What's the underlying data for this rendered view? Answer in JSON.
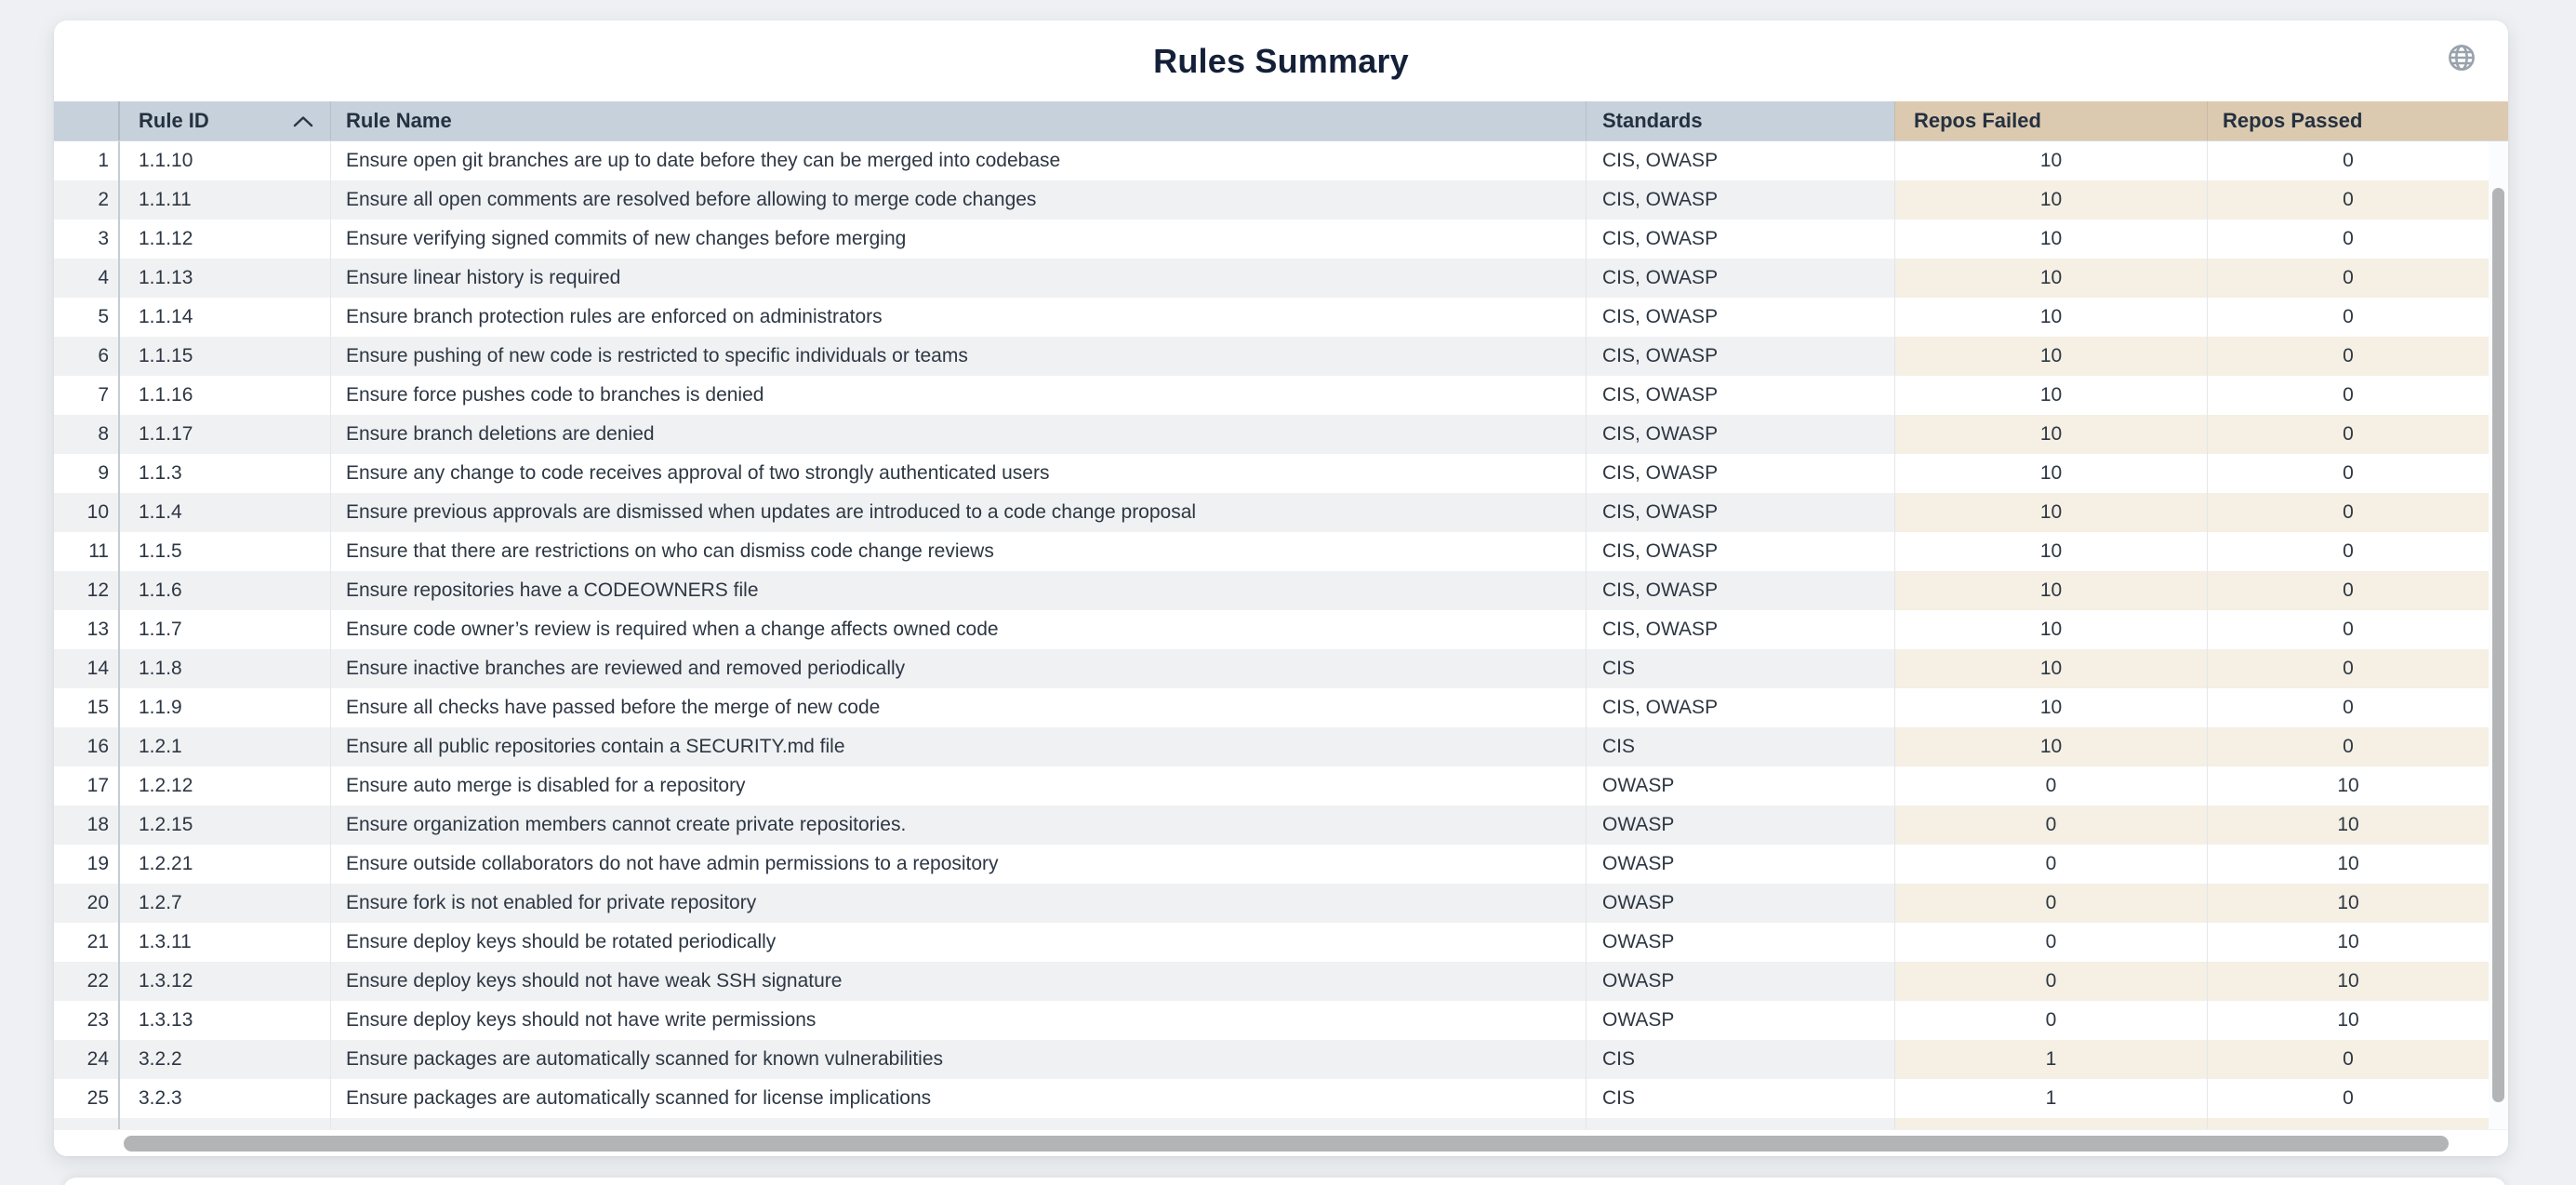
{
  "page": {
    "title": "Rules Summary"
  },
  "icons": {
    "top_right": "globe-icon",
    "rule_id_sort": "chevron-up-icon"
  },
  "colors": {
    "header_blue": "#c7d1dc",
    "header_tan": "#dccab0",
    "stripe_gray": "#f0f1f3",
    "stripe_tan": "#f5efe4",
    "title_navy": "#142038"
  },
  "table": {
    "columns": [
      {
        "key": "index",
        "label": ""
      },
      {
        "key": "rule_id",
        "label": "Rule ID",
        "sort": "asc"
      },
      {
        "key": "rule_name",
        "label": "Rule Name"
      },
      {
        "key": "standards",
        "label": "Standards"
      },
      {
        "key": "repos_failed",
        "label": "Repos Failed"
      },
      {
        "key": "repos_passed",
        "label": "Repos Passed"
      }
    ],
    "rows": [
      {
        "index": "1",
        "rule_id": "1.1.10",
        "rule_name": "Ensure open git branches are up to date before they can be merged into codebase",
        "standards": "CIS, OWASP",
        "repos_failed": "10",
        "repos_passed": "0"
      },
      {
        "index": "2",
        "rule_id": "1.1.11",
        "rule_name": "Ensure all open comments are resolved before allowing to merge code changes",
        "standards": "CIS, OWASP",
        "repos_failed": "10",
        "repos_passed": "0"
      },
      {
        "index": "3",
        "rule_id": "1.1.12",
        "rule_name": "Ensure verifying signed commits of new changes before merging",
        "standards": "CIS, OWASP",
        "repos_failed": "10",
        "repos_passed": "0"
      },
      {
        "index": "4",
        "rule_id": "1.1.13",
        "rule_name": "Ensure linear history is required",
        "standards": "CIS, OWASP",
        "repos_failed": "10",
        "repos_passed": "0"
      },
      {
        "index": "5",
        "rule_id": "1.1.14",
        "rule_name": "Ensure branch protection rules are enforced on administrators",
        "standards": "CIS, OWASP",
        "repos_failed": "10",
        "repos_passed": "0"
      },
      {
        "index": "6",
        "rule_id": "1.1.15",
        "rule_name": "Ensure pushing of new code is restricted to specific individuals or teams",
        "standards": "CIS, OWASP",
        "repos_failed": "10",
        "repos_passed": "0"
      },
      {
        "index": "7",
        "rule_id": "1.1.16",
        "rule_name": "Ensure force pushes code to branches is denied",
        "standards": "CIS, OWASP",
        "repos_failed": "10",
        "repos_passed": "0"
      },
      {
        "index": "8",
        "rule_id": "1.1.17",
        "rule_name": "Ensure branch deletions are denied",
        "standards": "CIS, OWASP",
        "repos_failed": "10",
        "repos_passed": "0"
      },
      {
        "index": "9",
        "rule_id": "1.1.3",
        "rule_name": "Ensure any change to code receives approval of two strongly authenticated users",
        "standards": "CIS, OWASP",
        "repos_failed": "10",
        "repos_passed": "0"
      },
      {
        "index": "10",
        "rule_id": "1.1.4",
        "rule_name": "Ensure previous approvals are dismissed when updates are introduced to a code change proposal",
        "standards": "CIS, OWASP",
        "repos_failed": "10",
        "repos_passed": "0"
      },
      {
        "index": "11",
        "rule_id": "1.1.5",
        "rule_name": "Ensure that there are restrictions on who can dismiss code change reviews",
        "standards": "CIS, OWASP",
        "repos_failed": "10",
        "repos_passed": "0"
      },
      {
        "index": "12",
        "rule_id": "1.1.6",
        "rule_name": "Ensure repositories have a CODEOWNERS file",
        "standards": "CIS, OWASP",
        "repos_failed": "10",
        "repos_passed": "0"
      },
      {
        "index": "13",
        "rule_id": "1.1.7",
        "rule_name": "Ensure code owner’s review is required when a change affects owned code",
        "standards": "CIS, OWASP",
        "repos_failed": "10",
        "repos_passed": "0"
      },
      {
        "index": "14",
        "rule_id": "1.1.8",
        "rule_name": "Ensure inactive branches are reviewed and removed periodically",
        "standards": "CIS",
        "repos_failed": "10",
        "repos_passed": "0"
      },
      {
        "index": "15",
        "rule_id": "1.1.9",
        "rule_name": "Ensure all checks have passed before the merge of new code",
        "standards": "CIS, OWASP",
        "repos_failed": "10",
        "repos_passed": "0"
      },
      {
        "index": "16",
        "rule_id": "1.2.1",
        "rule_name": "Ensure all public repositories contain a SECURITY.md file",
        "standards": "CIS",
        "repos_failed": "10",
        "repos_passed": "0"
      },
      {
        "index": "17",
        "rule_id": "1.2.12",
        "rule_name": "Ensure auto merge is disabled for a repository",
        "standards": "OWASP",
        "repos_failed": "0",
        "repos_passed": "10"
      },
      {
        "index": "18",
        "rule_id": "1.2.15",
        "rule_name": "Ensure organization members cannot create private repositories.",
        "standards": "OWASP",
        "repos_failed": "0",
        "repos_passed": "10"
      },
      {
        "index": "19",
        "rule_id": "1.2.21",
        "rule_name": "Ensure outside collaborators do not have admin permissions to a repository",
        "standards": "OWASP",
        "repos_failed": "0",
        "repos_passed": "10"
      },
      {
        "index": "20",
        "rule_id": "1.2.7",
        "rule_name": "Ensure fork is not enabled for private repository",
        "standards": "OWASP",
        "repos_failed": "0",
        "repos_passed": "10"
      },
      {
        "index": "21",
        "rule_id": "1.3.11",
        "rule_name": "Ensure deploy keys should be rotated periodically",
        "standards": "OWASP",
        "repos_failed": "0",
        "repos_passed": "10"
      },
      {
        "index": "22",
        "rule_id": "1.3.12",
        "rule_name": "Ensure deploy keys should not have weak SSH signature",
        "standards": "OWASP",
        "repos_failed": "0",
        "repos_passed": "10"
      },
      {
        "index": "23",
        "rule_id": "1.3.13",
        "rule_name": "Ensure deploy keys should not have write permissions",
        "standards": "OWASP",
        "repos_failed": "0",
        "repos_passed": "10"
      },
      {
        "index": "24",
        "rule_id": "3.2.2",
        "rule_name": "Ensure packages are automatically scanned for known vulnerabilities",
        "standards": "CIS",
        "repos_failed": "1",
        "repos_passed": "0"
      },
      {
        "index": "25",
        "rule_id": "3.2.3",
        "rule_name": "Ensure packages are automatically scanned for license implications",
        "standards": "CIS",
        "repos_failed": "1",
        "repos_passed": "0"
      }
    ]
  }
}
